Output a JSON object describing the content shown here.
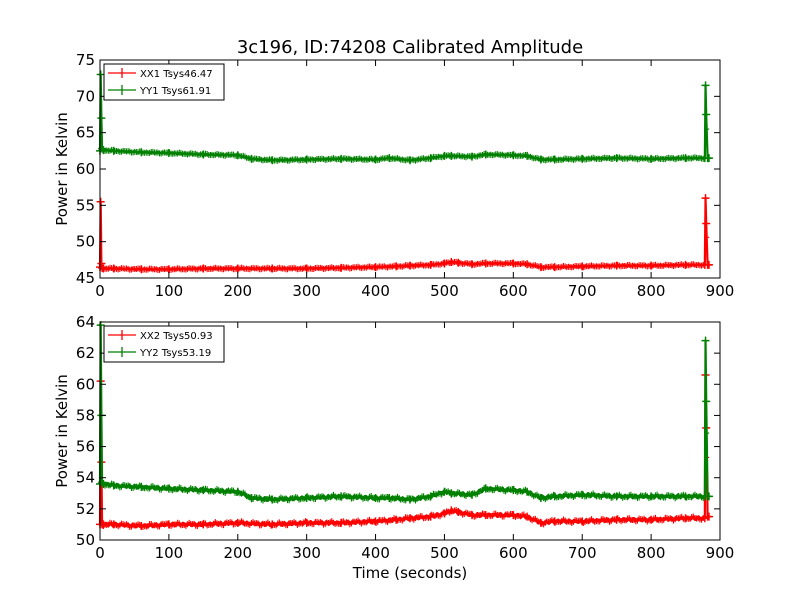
{
  "figure": {
    "title": "3c196, ID:74208 Calibrated Amplitude",
    "xlabel": "Time (seconds)"
  },
  "colors": {
    "xx": "#ff0000",
    "yy": "#008000",
    "axis": "#000000",
    "background": "#ffffff"
  },
  "chart_data": [
    {
      "type": "line",
      "panel": "top",
      "title": "3c196, ID:74208 Calibrated Amplitude",
      "xlabel": "",
      "ylabel": "Power in Kelvin",
      "xlim": [
        0,
        900
      ],
      "ylim": [
        45,
        75
      ],
      "xticks": [
        0,
        100,
        200,
        300,
        400,
        500,
        600,
        700,
        800,
        900
      ],
      "yticks": [
        45,
        50,
        55,
        60,
        65,
        70,
        75
      ],
      "grid": false,
      "legend_position": "top-left",
      "series": [
        {
          "name": "XX1 Tsys46.47",
          "color": "#ff0000",
          "x": [
            0,
            1,
            2,
            3,
            5,
            20,
            60,
            100,
            150,
            200,
            250,
            300,
            350,
            400,
            430,
            450,
            480,
            500,
            510,
            520,
            540,
            560,
            600,
            620,
            640,
            660,
            700,
            750,
            800,
            850,
            878,
            879,
            880,
            882,
            884
          ],
          "values": [
            46.5,
            55.5,
            47,
            46.4,
            46.3,
            46.3,
            46.2,
            46.2,
            46.3,
            46.3,
            46.3,
            46.3,
            46.4,
            46.5,
            46.6,
            46.7,
            46.8,
            47.0,
            47.2,
            47.1,
            46.9,
            47.0,
            47.0,
            46.9,
            46.5,
            46.5,
            46.6,
            46.7,
            46.7,
            46.8,
            46.8,
            56.0,
            52.5,
            46.8,
            46.8
          ]
        },
        {
          "name": "YY1 Tsys61.91",
          "color": "#008000",
          "x": [
            0,
            1,
            2,
            3,
            5,
            20,
            60,
            100,
            150,
            200,
            220,
            250,
            300,
            350,
            400,
            420,
            450,
            480,
            500,
            510,
            540,
            560,
            600,
            620,
            640,
            660,
            700,
            750,
            800,
            850,
            878,
            879,
            880,
            882,
            884
          ],
          "values": [
            62.5,
            73,
            67,
            62.8,
            62.6,
            62.5,
            62.3,
            62.2,
            62.0,
            61.9,
            61.4,
            61.2,
            61.3,
            61.4,
            61.3,
            61.5,
            61.2,
            61.5,
            61.8,
            61.8,
            61.7,
            62.0,
            61.9,
            61.8,
            61.3,
            61.3,
            61.4,
            61.5,
            61.4,
            61.5,
            61.5,
            71.5,
            67.5,
            61.5,
            61.5
          ]
        }
      ]
    },
    {
      "type": "line",
      "panel": "bottom",
      "title": "",
      "xlabel": "Time (seconds)",
      "ylabel": "Power in Kelvin",
      "xlim": [
        0,
        900
      ],
      "ylim": [
        50,
        64
      ],
      "xticks": [
        0,
        100,
        200,
        300,
        400,
        500,
        600,
        700,
        800,
        900
      ],
      "yticks": [
        50,
        52,
        54,
        56,
        58,
        60,
        62,
        64
      ],
      "grid": false,
      "legend_position": "top-left",
      "series": [
        {
          "name": "XX2 Tsys50.93",
          "color": "#ff0000",
          "x": [
            0,
            1,
            2,
            3,
            5,
            20,
            60,
            100,
            150,
            200,
            250,
            300,
            350,
            400,
            430,
            450,
            480,
            500,
            510,
            520,
            540,
            560,
            600,
            620,
            640,
            660,
            700,
            750,
            800,
            850,
            878,
            879,
            880,
            882,
            884
          ],
          "values": [
            51.0,
            60.2,
            55,
            51.0,
            51.0,
            51.0,
            50.9,
            51.0,
            51.0,
            51.1,
            51.0,
            51.1,
            51.1,
            51.2,
            51.3,
            51.4,
            51.5,
            51.7,
            51.9,
            51.8,
            51.6,
            51.6,
            51.6,
            51.5,
            51.1,
            51.2,
            51.2,
            51.3,
            51.3,
            51.4,
            51.4,
            60.6,
            57.2,
            51.5,
            51.5
          ]
        },
        {
          "name": "YY2 Tsys53.19",
          "color": "#008000",
          "x": [
            0,
            1,
            2,
            3,
            5,
            20,
            60,
            100,
            150,
            200,
            220,
            250,
            300,
            350,
            400,
            420,
            450,
            480,
            500,
            510,
            540,
            560,
            600,
            620,
            640,
            660,
            700,
            750,
            800,
            850,
            878,
            879,
            880,
            882,
            884
          ],
          "values": [
            53.6,
            63.8,
            58,
            53.7,
            53.6,
            53.5,
            53.4,
            53.3,
            53.2,
            53.1,
            52.7,
            52.6,
            52.7,
            52.8,
            52.7,
            52.7,
            52.6,
            52.8,
            53.1,
            53.0,
            52.9,
            53.3,
            53.2,
            53.1,
            52.7,
            52.8,
            52.9,
            52.8,
            52.8,
            52.8,
            52.8,
            62.8,
            58.9,
            52.8,
            52.8
          ]
        }
      ]
    }
  ]
}
